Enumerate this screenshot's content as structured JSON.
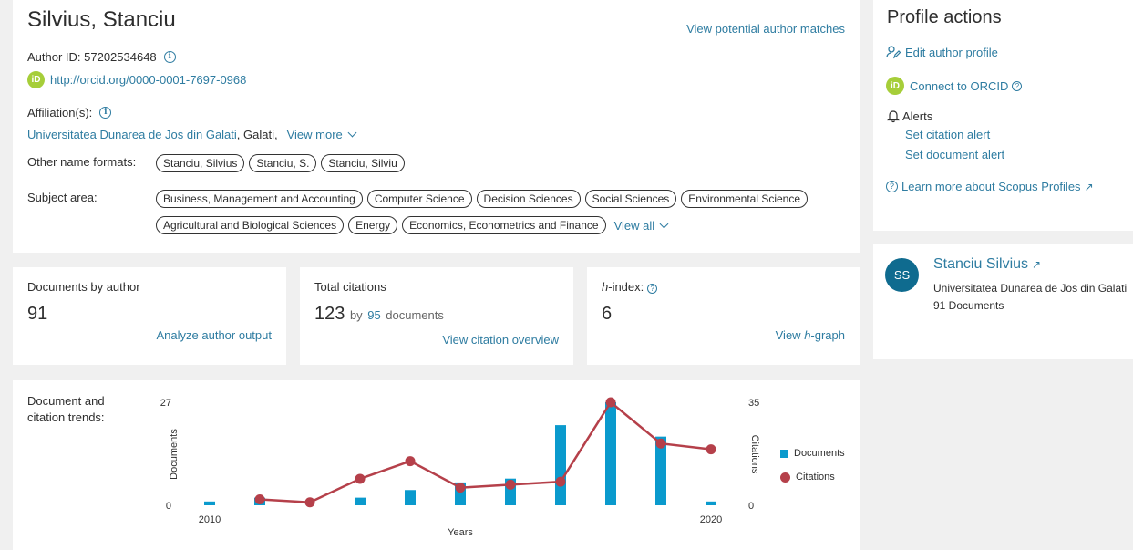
{
  "author": {
    "name": "Silvius, Stanciu",
    "potential_matches": "View potential author matches",
    "author_id_label": "Author ID: 57202534648",
    "orcid_badge": "iD",
    "orcid_url": "http://orcid.org/0000-0001-7697-0968",
    "affiliation_label": "Affiliation(s):",
    "affiliation_name": "Universitatea Dunarea de Jos din Galati",
    "affiliation_city": ", Galati,",
    "view_more": "View more",
    "other_names_label": "Other name formats:",
    "other_names": [
      "Stanciu, Silvius",
      "Stanciu, S.",
      "Stanciu, Silviu"
    ],
    "subject_label": "Subject area:",
    "subjects_row1": [
      "Business, Management and Accounting",
      "Computer Science",
      "Decision Sciences",
      "Social Sciences",
      "Environmental Science"
    ],
    "subjects_row2": [
      "Agricultural and Biological Sciences",
      "Energy",
      "Economics, Econometrics and Finance"
    ],
    "view_all": "View all"
  },
  "metrics": {
    "documents": {
      "title": "Documents by author",
      "value": "91",
      "link": "Analyze author output"
    },
    "citations": {
      "title": "Total citations",
      "value": "123",
      "by": "by",
      "docs_count": "95",
      "docs_label": "documents",
      "link": "View citation overview"
    },
    "hindex": {
      "title_h": "h",
      "title_rest": "-index:",
      "value": "6",
      "link_pre": "View ",
      "link_h": "h",
      "link_post": "-graph"
    }
  },
  "chart_title": "Document and citation trends:",
  "chart_data": {
    "type": "bar",
    "x": [
      2010,
      2011,
      2012,
      2013,
      2014,
      2015,
      2016,
      2017,
      2018,
      2019,
      2020
    ],
    "x_tick_labels": [
      "2010",
      "2020"
    ],
    "xlabel": "Years",
    "ylabel_left": "Documents",
    "ylabel_right": "Citations",
    "ylim_left": [
      0,
      27
    ],
    "ylim_right": [
      0,
      35
    ],
    "left_ticks": [
      "0",
      "27"
    ],
    "right_ticks": [
      "0",
      "35"
    ],
    "series": [
      {
        "name": "Documents",
        "type": "bar",
        "axis": "left",
        "color": "#0a9acd",
        "values": [
          1,
          2,
          0,
          2,
          4,
          6,
          7,
          21,
          27,
          18,
          1
        ]
      },
      {
        "name": "Citations",
        "type": "line",
        "axis": "right",
        "color": "#b5404a",
        "values": [
          null,
          2,
          1,
          9,
          15,
          6,
          7,
          8,
          35,
          21,
          19
        ]
      }
    ],
    "legend_position": "right"
  },
  "actions": {
    "title": "Profile actions",
    "edit": "Edit author profile",
    "orcid": "Connect to ORCID",
    "alerts": "Alerts",
    "citation_alert": "Set citation alert",
    "document_alert": "Set document alert",
    "learn": "Learn more about Scopus Profiles"
  },
  "profile": {
    "initials": "SS",
    "name": "Stanciu Silvius",
    "affiliation": "Universitatea Dunarea de Jos din Galati",
    "documents": "91 Documents"
  },
  "colors": {
    "link": "#2e7ca1",
    "bar": "#0a9acd",
    "line": "#b5404a",
    "orcid": "#a6ce39",
    "avatar": "#0f6b8f"
  }
}
